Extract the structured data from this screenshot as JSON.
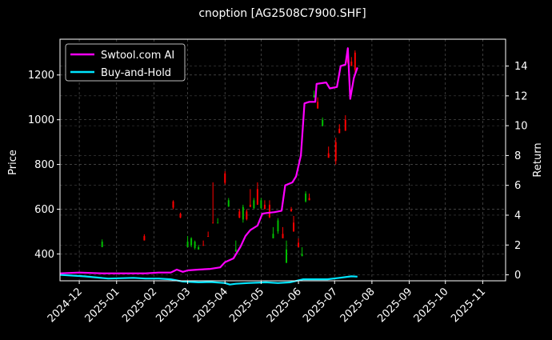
{
  "chart_data": {
    "type": "line",
    "title": "cnoption [AG2508C7900.SHF]",
    "ylabel_left": "Price",
    "ylabel_right": "Return",
    "x_ticks": [
      "2024-12",
      "2025-01",
      "2025-02",
      "2025-03",
      "2025-04",
      "2025-05",
      "2025-06",
      "2025-07",
      "2025-08",
      "2025-09",
      "2025-10",
      "2025-11"
    ],
    "x_range": [
      "2024-11-15",
      "2025-11-20"
    ],
    "ylim_left": [
      280,
      1360
    ],
    "yticks_left": [
      400,
      600,
      800,
      1000,
      1200
    ],
    "ylim_right": [
      -0.4,
      15.8
    ],
    "yticks_right": [
      0,
      2,
      4,
      6,
      8,
      10,
      12,
      14
    ],
    "grid": true,
    "legend": "top-left",
    "colors": {
      "ai": "#ff00ff",
      "bh": "#00e5ff",
      "up": "#00c000",
      "down": "#ff0000",
      "background": "#000000",
      "axes": "#ffffff"
    },
    "series": [
      {
        "name": "Swtool.com AI",
        "axis": "right",
        "points": [
          [
            "2024-11-15",
            0.1
          ],
          [
            "2024-12-01",
            0.15
          ],
          [
            "2024-12-20",
            0.1
          ],
          [
            "2025-01-10",
            0.1
          ],
          [
            "2025-01-25",
            0.1
          ],
          [
            "2025-02-05",
            0.15
          ],
          [
            "2025-02-15",
            0.15
          ],
          [
            "2025-02-20",
            0.35
          ],
          [
            "2025-02-25",
            0.2
          ],
          [
            "2025-03-01",
            0.3
          ],
          [
            "2025-03-10",
            0.35
          ],
          [
            "2025-03-20",
            0.4
          ],
          [
            "2025-03-28",
            0.5
          ],
          [
            "2025-04-01",
            0.85
          ],
          [
            "2025-04-08",
            1.1
          ],
          [
            "2025-04-14",
            1.9
          ],
          [
            "2025-04-18",
            2.6
          ],
          [
            "2025-04-22",
            3.0
          ],
          [
            "2025-04-28",
            3.3
          ],
          [
            "2025-05-02",
            4.1
          ],
          [
            "2025-05-06",
            4.15
          ],
          [
            "2025-05-12",
            4.2
          ],
          [
            "2025-05-18",
            4.3
          ],
          [
            "2025-05-21",
            6.0
          ],
          [
            "2025-05-27",
            6.2
          ],
          [
            "2025-05-30",
            6.6
          ],
          [
            "2025-06-03",
            8.0
          ],
          [
            "2025-06-06",
            11.5
          ],
          [
            "2025-06-10",
            11.6
          ],
          [
            "2025-06-15",
            11.6
          ],
          [
            "2025-06-16",
            12.8
          ],
          [
            "2025-06-24",
            12.9
          ],
          [
            "2025-06-27",
            12.5
          ],
          [
            "2025-07-03",
            12.6
          ],
          [
            "2025-07-06",
            14.0
          ],
          [
            "2025-07-10",
            14.1
          ],
          [
            "2025-07-12",
            15.2
          ],
          [
            "2025-07-14",
            11.8
          ],
          [
            "2025-07-17",
            13.2
          ],
          [
            "2025-07-20",
            13.9
          ]
        ]
      },
      {
        "name": "Buy-and-Hold",
        "axis": "right",
        "points": [
          [
            "2024-11-15",
            0.0
          ],
          [
            "2024-12-05",
            -0.1
          ],
          [
            "2024-12-25",
            -0.25
          ],
          [
            "2025-01-15",
            -0.2
          ],
          [
            "2025-01-25",
            -0.25
          ],
          [
            "2025-02-05",
            -0.25
          ],
          [
            "2025-02-15",
            -0.3
          ],
          [
            "2025-02-25",
            -0.45
          ],
          [
            "2025-03-10",
            -0.5
          ],
          [
            "2025-03-20",
            -0.48
          ],
          [
            "2025-04-01",
            -0.55
          ],
          [
            "2025-04-05",
            -0.65
          ],
          [
            "2025-04-10",
            -0.6
          ],
          [
            "2025-04-20",
            -0.55
          ],
          [
            "2025-05-05",
            -0.5
          ],
          [
            "2025-05-15",
            -0.55
          ],
          [
            "2025-05-25",
            -0.5
          ],
          [
            "2025-06-05",
            -0.3
          ],
          [
            "2025-06-15",
            -0.3
          ],
          [
            "2025-06-25",
            -0.3
          ],
          [
            "2025-07-05",
            -0.2
          ],
          [
            "2025-07-15",
            -0.1
          ],
          [
            "2025-07-20",
            -0.12
          ]
        ]
      }
    ],
    "candles": [
      [
        "2024-12-20",
        455,
        465,
        430,
        "up"
      ],
      [
        "2025-01-24",
        480,
        488,
        460,
        "down"
      ],
      [
        "2025-02-17",
        635,
        640,
        600,
        "down"
      ],
      [
        "2025-02-23",
        580,
        585,
        560,
        "down"
      ],
      [
        "2025-03-01",
        455,
        480,
        430,
        "up"
      ],
      [
        "2025-03-04",
        470,
        475,
        430,
        "up"
      ],
      [
        "2025-03-07",
        455,
        460,
        420,
        "up"
      ],
      [
        "2025-03-10",
        430,
        440,
        420,
        "up"
      ],
      [
        "2025-03-14",
        440,
        460,
        440,
        "down"
      ],
      [
        "2025-03-18",
        480,
        500,
        480,
        "down"
      ],
      [
        "2025-03-22",
        540,
        720,
        540,
        "down"
      ],
      [
        "2025-03-26",
        540,
        560,
        540,
        "up"
      ],
      [
        "2025-04-01",
        760,
        770,
        710,
        "down"
      ],
      [
        "2025-04-04",
        640,
        650,
        610,
        "up"
      ],
      [
        "2025-04-10",
        420,
        460,
        410,
        "up"
      ],
      [
        "2025-04-13",
        590,
        600,
        560,
        "down"
      ],
      [
        "2025-04-16",
        610,
        620,
        540,
        "up"
      ],
      [
        "2025-04-19",
        590,
        600,
        550,
        "down"
      ],
      [
        "2025-04-22",
        620,
        690,
        610,
        "down"
      ],
      [
        "2025-04-25",
        640,
        650,
        600,
        "up"
      ],
      [
        "2025-04-28",
        690,
        720,
        620,
        "down"
      ],
      [
        "2025-05-01",
        640,
        650,
        600,
        "up"
      ],
      [
        "2025-05-04",
        620,
        640,
        600,
        "down"
      ],
      [
        "2025-05-08",
        620,
        640,
        560,
        "down"
      ],
      [
        "2025-05-11",
        490,
        520,
        470,
        "up"
      ],
      [
        "2025-05-15",
        550,
        560,
        490,
        "up"
      ],
      [
        "2025-05-19",
        490,
        520,
        470,
        "down"
      ],
      [
        "2025-05-22",
        420,
        460,
        360,
        "up"
      ],
      [
        "2025-05-26",
        600,
        610,
        590,
        "down"
      ],
      [
        "2025-05-28",
        540,
        570,
        500,
        "down"
      ],
      [
        "2025-06-01",
        450,
        470,
        430,
        "down"
      ],
      [
        "2025-06-04",
        400,
        430,
        390,
        "up"
      ],
      [
        "2025-06-07",
        670,
        680,
        630,
        "up"
      ],
      [
        "2025-06-10",
        650,
        670,
        640,
        "down"
      ],
      [
        "2025-06-14",
        1110,
        1130,
        1100,
        "up"
      ],
      [
        "2025-06-17",
        1080,
        1100,
        1050,
        "down"
      ],
      [
        "2025-06-21",
        1000,
        1010,
        970,
        "up"
      ],
      [
        "2025-06-26",
        850,
        880,
        830,
        "down"
      ],
      [
        "2025-07-02",
        900,
        920,
        800,
        "down"
      ],
      [
        "2025-07-05",
        960,
        980,
        940,
        "down"
      ],
      [
        "2025-07-10",
        1000,
        1020,
        950,
        "down"
      ],
      [
        "2025-07-12",
        1290,
        1300,
        1250,
        "down"
      ],
      [
        "2025-07-15",
        1260,
        1280,
        1240,
        "down"
      ],
      [
        "2025-07-18",
        1300,
        1310,
        1200,
        "down"
      ]
    ]
  }
}
